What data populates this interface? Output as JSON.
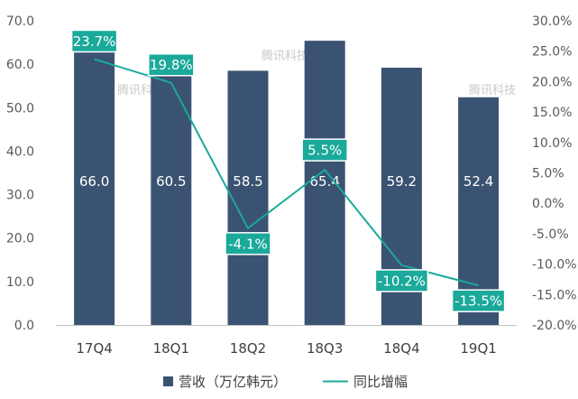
{
  "chart_data": {
    "type": "bar",
    "categories": [
      "17Q4",
      "18Q1",
      "18Q2",
      "18Q3",
      "18Q4",
      "19Q1"
    ],
    "series": [
      {
        "name": "营收（万亿韩元）",
        "type": "bar",
        "axis": "left",
        "values": [
          66.0,
          60.5,
          58.5,
          65.4,
          59.2,
          52.4
        ],
        "labels": [
          "66.0",
          "60.5",
          "58.5",
          "65.4",
          "59.2",
          "52.4"
        ]
      },
      {
        "name": "同比增幅",
        "type": "line",
        "axis": "right",
        "values": [
          23.7,
          19.8,
          -4.1,
          5.5,
          -10.2,
          -13.5
        ],
        "labels": [
          "23.7%",
          "19.8%",
          "-4.1%",
          "5.5%",
          "-10.2%",
          "-13.5%"
        ]
      }
    ],
    "y_left": {
      "ylim": [
        0,
        70
      ],
      "ticks": [
        "0.0",
        "10.0",
        "20.0",
        "30.0",
        "40.0",
        "50.0",
        "60.0",
        "70.0"
      ]
    },
    "y_right": {
      "ylim": [
        -20,
        30
      ],
      "ticks": [
        "-20.0%",
        "-15.0%",
        "-10.0%",
        "-5.0%",
        "0.0%",
        "5.0%",
        "10.0%",
        "15.0%",
        "20.0%",
        "25.0%",
        "30.0%"
      ]
    },
    "legend_position": "bottom",
    "grid": false,
    "colors": {
      "bar": "#3b5372",
      "line": "#1aa99a",
      "label_box": "#1aa99a"
    },
    "watermark": [
      "腾讯科技",
      "腾讯科技",
      "腾讯科技"
    ]
  }
}
